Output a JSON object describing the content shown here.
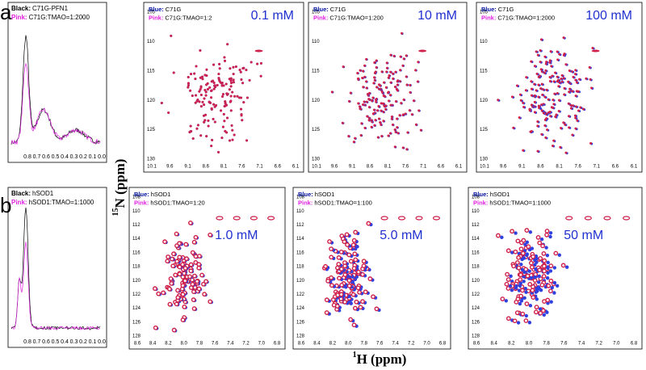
{
  "panel_labels": [
    "a",
    "b"
  ],
  "axis_labels": {
    "y_sup": "15",
    "y": "N (ppm)",
    "x_sup": "1",
    "x": "H (ppm)"
  },
  "rows": [
    {
      "oned": {
        "legend": [
          {
            "label": "Black:",
            "text": "C71G-PFN1"
          },
          {
            "label": "Pink:",
            "text": "C71G:TMAO=1:2000"
          }
        ],
        "xticks": [
          "0.8",
          "0.7",
          "0.6",
          "0.5",
          "0.4",
          "0.3",
          "0.2",
          "0.1",
          "0.0"
        ]
      },
      "xticks": [
        "10.1",
        "9.6",
        "9.1",
        "8.6",
        "8.1",
        "7.6",
        "7.1",
        "6.6",
        "6.1"
      ],
      "yticks": [
        "105",
        "110",
        "115",
        "120",
        "125",
        "130"
      ],
      "panels": [
        {
          "legend": [
            {
              "label": "Blue:",
              "text": "C71G"
            },
            {
              "label": "Pink:",
              "text": "C71G:TMAO=1:2"
            }
          ],
          "concentration": "0.1 mM"
        },
        {
          "legend": [
            {
              "label": "Blue:",
              "text": "C71G"
            },
            {
              "label": "Pink:",
              "text": "C71G:TMAO=1:200"
            }
          ],
          "concentration": "10 mM"
        },
        {
          "legend": [
            {
              "label": "Blue:",
              "text": "C71G"
            },
            {
              "label": "Pink:",
              "text": "C71G:TMAO=1:2000"
            }
          ],
          "concentration": "100 mM"
        }
      ]
    },
    {
      "oned": {
        "legend": [
          {
            "label": "Black:",
            "text": "hSOD1"
          },
          {
            "label": "Pink:",
            "text": "hSOD1:TMAO=1:1000"
          }
        ],
        "xticks": [
          "0.8",
          "0.7",
          "0.6",
          "0.5",
          "0.4",
          "0.3",
          "0.2",
          "0.1",
          "0.0"
        ]
      },
      "xticks": [
        "8.6",
        "8.4",
        "8.2",
        "8.0",
        "7.8",
        "7.6",
        "7.4",
        "7.2",
        "7.0",
        "6.8"
      ],
      "yticks": [
        "108",
        "110",
        "112",
        "114",
        "116",
        "118",
        "120",
        "122",
        "124",
        "126",
        "128"
      ],
      "panels": [
        {
          "legend": [
            {
              "label": "Blue:",
              "text": "hSOD1"
            },
            {
              "label": "Pink:",
              "text": "hSOD1:TMAO=1:20"
            }
          ],
          "concentration": "1.0 mM"
        },
        {
          "legend": [
            {
              "label": "Blue:",
              "text": "hSOD1"
            },
            {
              "label": "Pink:",
              "text": "hSOD1:TMAO=1:100"
            }
          ],
          "concentration": "5.0 mM"
        },
        {
          "legend": [
            {
              "label": "Blue:",
              "text": "hSOD1"
            },
            {
              "label": "Pink:",
              "text": "hSOD1:TMAO=1:1000"
            }
          ],
          "concentration": "50 mM"
        }
      ]
    }
  ]
}
